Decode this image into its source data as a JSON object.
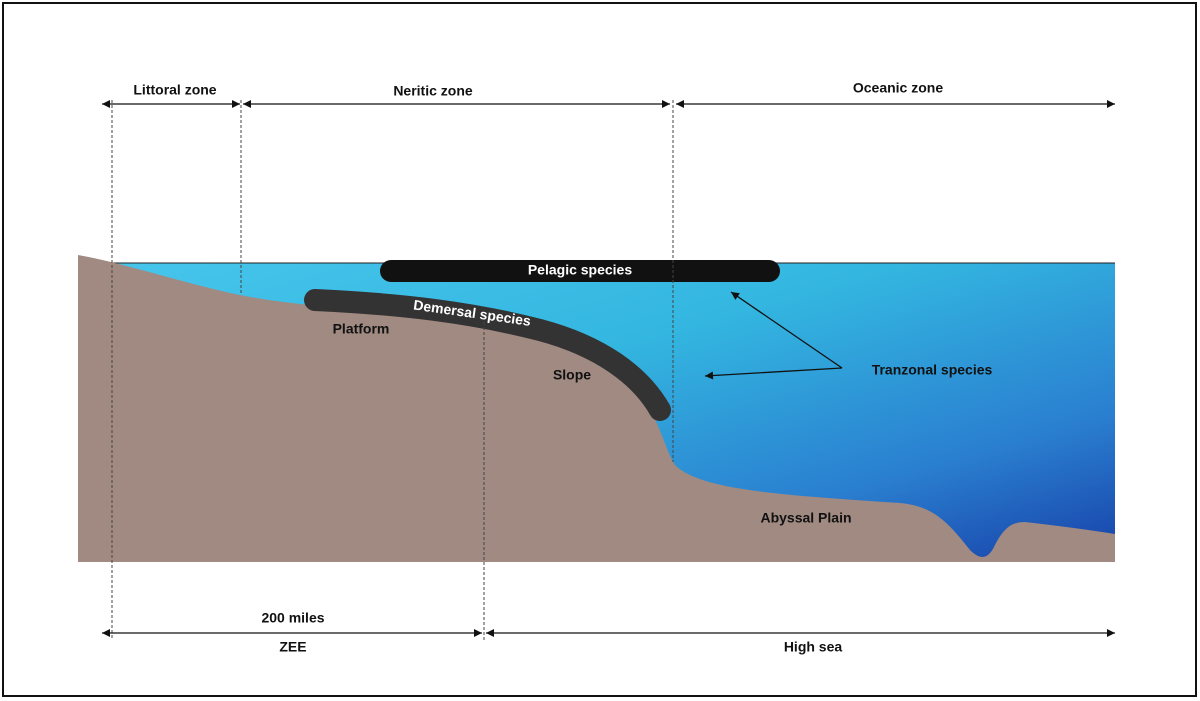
{
  "zones": {
    "littoral": "Littoral zone",
    "neritic": "Neritic zone",
    "oceanic": "Oceanic zone"
  },
  "labels": {
    "pelagic": "Pelagic species",
    "demersal": "Demersal species",
    "platform": "Platform",
    "slope": "Slope",
    "tranzonal": "Tranzonal species",
    "abyssal": "Abyssal Plain"
  },
  "bottom": {
    "distance": "200 miles",
    "zee": "ZEE",
    "high_sea": "High sea"
  }
}
